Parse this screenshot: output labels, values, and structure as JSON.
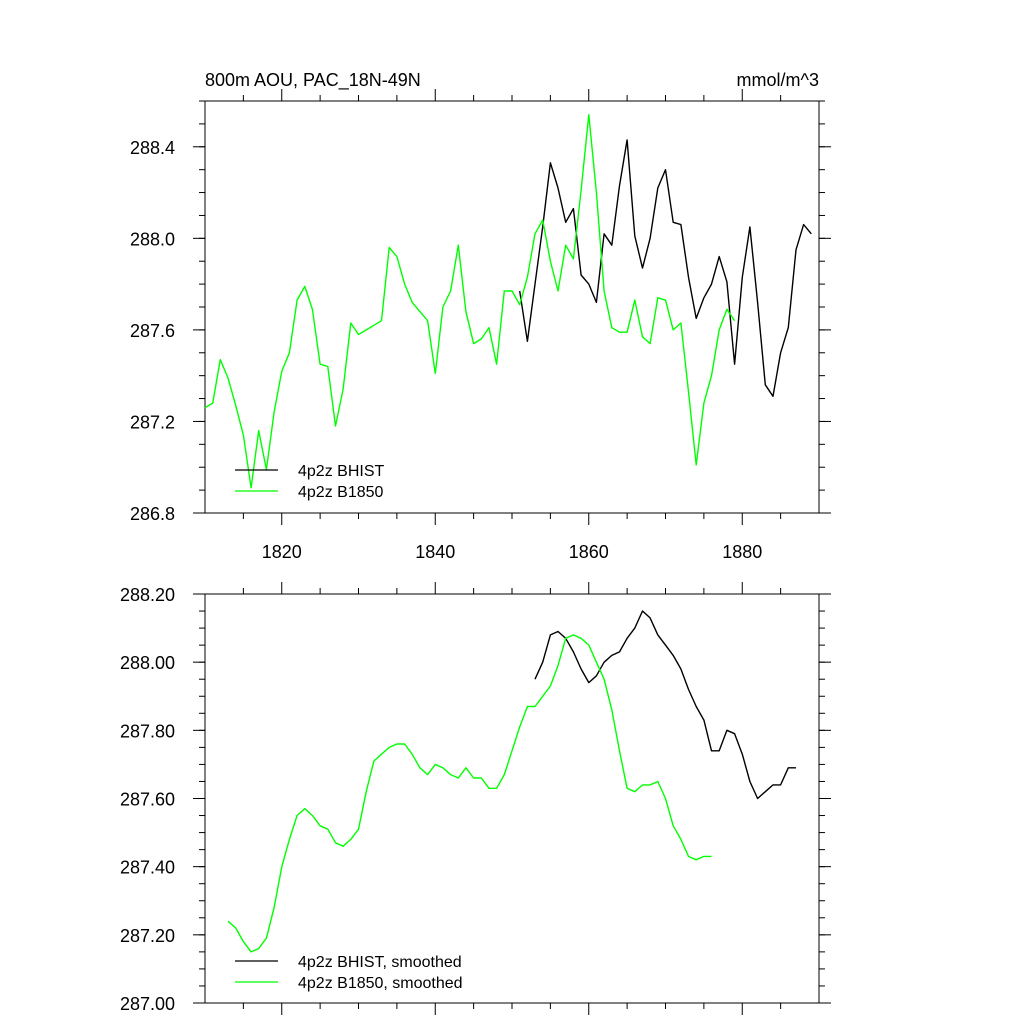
{
  "chart_data": [
    {
      "type": "line",
      "title": "800m AOU, PAC_18N-49N",
      "units": "mmol/m^3",
      "xlim": [
        1810,
        1890
      ],
      "ylim": [
        286.8,
        288.6
      ],
      "xticks": [
        1820,
        1840,
        1860,
        1880
      ],
      "xtick_labels": [
        "1820",
        "1840",
        "1860",
        "1880"
      ],
      "yticks": [
        286.8,
        287.2,
        287.6,
        288.0,
        288.4
      ],
      "ytick_labels": [
        "286.8",
        "287.2",
        "287.6",
        "288.0",
        "288.4"
      ],
      "legend": [
        {
          "label": "4p2z BHIST",
          "color": "#000000"
        },
        {
          "label": "4p2z B1850",
          "color": "#00ff00"
        }
      ],
      "series": [
        {
          "name": "4p2z BHIST",
          "color": "#000000",
          "x": [
            1851,
            1852,
            1853,
            1854,
            1855,
            1856,
            1857,
            1858,
            1859,
            1860,
            1861,
            1862,
            1863,
            1864,
            1865,
            1866,
            1867,
            1868,
            1869,
            1870,
            1871,
            1872,
            1873,
            1874,
            1875,
            1876,
            1877,
            1878,
            1879,
            1880,
            1881,
            1882,
            1883,
            1884,
            1885,
            1886,
            1887,
            1888,
            1889
          ],
          "y": [
            287.77,
            287.55,
            287.8,
            288.05,
            288.33,
            288.22,
            288.07,
            288.13,
            287.84,
            287.8,
            287.72,
            288.02,
            287.97,
            288.23,
            288.43,
            288.01,
            287.87,
            288.0,
            288.22,
            288.3,
            288.07,
            288.06,
            287.83,
            287.65,
            287.74,
            287.8,
            287.92,
            287.81,
            287.45,
            287.83,
            288.05,
            287.72,
            287.36,
            287.31,
            287.5,
            287.61,
            287.95,
            288.06,
            288.02
          ]
        },
        {
          "name": "4p2z B1850",
          "color": "#00ff00",
          "x": [
            1810,
            1811,
            1812,
            1813,
            1814,
            1815,
            1816,
            1817,
            1818,
            1819,
            1820,
            1821,
            1822,
            1823,
            1824,
            1825,
            1826,
            1827,
            1828,
            1829,
            1830,
            1831,
            1832,
            1833,
            1834,
            1835,
            1836,
            1837,
            1838,
            1839,
            1840,
            1841,
            1842,
            1843,
            1844,
            1845,
            1846,
            1847,
            1848,
            1849,
            1850,
            1851,
            1852,
            1853,
            1854,
            1855,
            1856,
            1857,
            1858,
            1859,
            1860,
            1861,
            1862,
            1863,
            1864,
            1865,
            1866,
            1867,
            1868,
            1869,
            1870,
            1871,
            1872,
            1873,
            1874,
            1875,
            1876,
            1877,
            1878,
            1879
          ],
          "y": [
            287.26,
            287.28,
            287.47,
            287.39,
            287.27,
            287.14,
            286.91,
            287.16,
            286.99,
            287.24,
            287.42,
            287.5,
            287.73,
            287.79,
            287.69,
            287.45,
            287.44,
            287.18,
            287.34,
            287.63,
            287.58,
            287.6,
            287.62,
            287.64,
            287.96,
            287.92,
            287.8,
            287.72,
            287.68,
            287.64,
            287.41,
            287.7,
            287.77,
            287.97,
            287.68,
            287.54,
            287.56,
            287.61,
            287.45,
            287.77,
            287.77,
            287.71,
            287.83,
            288.02,
            288.08,
            287.9,
            287.77,
            287.97,
            287.91,
            288.21,
            288.54,
            288.2,
            287.77,
            287.61,
            287.59,
            287.59,
            287.73,
            287.57,
            287.54,
            287.74,
            287.73,
            287.6,
            287.63,
            287.33,
            287.01,
            287.28,
            287.4,
            287.6,
            287.69,
            287.64
          ]
        }
      ]
    },
    {
      "type": "line",
      "title": "",
      "xlim": [
        1810,
        1890
      ],
      "ylim": [
        287.0,
        288.2
      ],
      "xticks": [
        1820,
        1840,
        1860,
        1880
      ],
      "yticks": [
        287.0,
        287.2,
        287.4,
        287.6,
        287.8,
        288.0,
        288.2
      ],
      "ytick_labels": [
        "287.00",
        "287.20",
        "287.40",
        "287.60",
        "287.80",
        "288.00",
        "288.20"
      ],
      "legend": [
        {
          "label": "4p2z BHIST, smoothed",
          "color": "#000000"
        },
        {
          "label": "4p2z B1850, smoothed",
          "color": "#00ff00"
        }
      ],
      "series": [
        {
          "name": "4p2z BHIST, smoothed",
          "color": "#000000",
          "x": [
            1853,
            1854,
            1855,
            1856,
            1857,
            1858,
            1859,
            1860,
            1861,
            1862,
            1863,
            1864,
            1865,
            1866,
            1867,
            1868,
            1869,
            1870,
            1871,
            1872,
            1873,
            1874,
            1875,
            1876,
            1877,
            1878,
            1879,
            1880,
            1881,
            1882,
            1883,
            1884,
            1885,
            1886,
            1887
          ],
          "y": [
            287.95,
            288.0,
            288.08,
            288.09,
            288.07,
            288.03,
            287.98,
            287.94,
            287.96,
            288.0,
            288.02,
            288.03,
            288.07,
            288.1,
            288.15,
            288.13,
            288.08,
            288.05,
            288.02,
            287.98,
            287.92,
            287.87,
            287.83,
            287.74,
            287.74,
            287.8,
            287.79,
            287.73,
            287.65,
            287.6,
            287.62,
            287.64,
            287.64,
            287.69,
            287.69
          ]
        },
        {
          "name": "4p2z B1850, smoothed",
          "color": "#00ff00",
          "x": [
            1813,
            1814,
            1815,
            1816,
            1817,
            1818,
            1819,
            1820,
            1821,
            1822,
            1823,
            1824,
            1825,
            1826,
            1827,
            1828,
            1829,
            1830,
            1831,
            1832,
            1833,
            1834,
            1835,
            1836,
            1837,
            1838,
            1839,
            1840,
            1841,
            1842,
            1843,
            1844,
            1845,
            1846,
            1847,
            1848,
            1849,
            1850,
            1851,
            1852,
            1853,
            1854,
            1855,
            1856,
            1857,
            1858,
            1859,
            1860,
            1861,
            1862,
            1863,
            1864,
            1865,
            1866,
            1867,
            1868,
            1869,
            1870,
            1871,
            1872,
            1873,
            1874,
            1875,
            1876
          ],
          "y": [
            287.24,
            287.22,
            287.18,
            287.15,
            287.16,
            287.19,
            287.28,
            287.4,
            287.48,
            287.55,
            287.57,
            287.55,
            287.52,
            287.51,
            287.47,
            287.46,
            287.48,
            287.51,
            287.62,
            287.71,
            287.73,
            287.75,
            287.76,
            287.76,
            287.73,
            287.69,
            287.67,
            287.7,
            287.69,
            287.67,
            287.66,
            287.69,
            287.66,
            287.66,
            287.63,
            287.63,
            287.67,
            287.74,
            287.81,
            287.87,
            287.87,
            287.9,
            287.93,
            287.99,
            288.07,
            288.08,
            288.07,
            288.05,
            288.0,
            287.95,
            287.86,
            287.74,
            287.63,
            287.62,
            287.64,
            287.64,
            287.65,
            287.6,
            287.52,
            287.48,
            287.43,
            287.42,
            287.43,
            287.43
          ]
        }
      ]
    }
  ]
}
